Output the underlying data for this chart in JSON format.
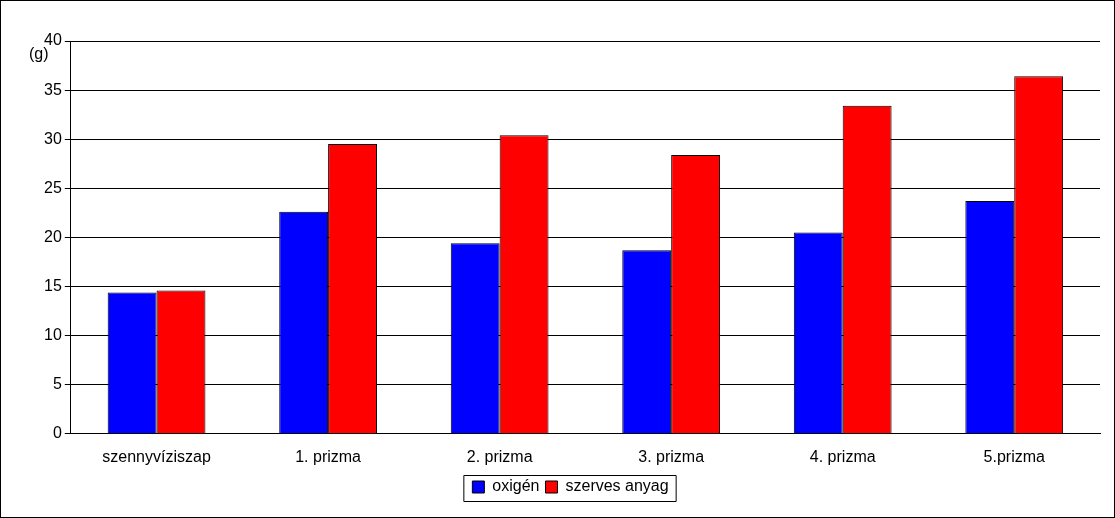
{
  "chart_data": {
    "type": "bar",
    "ylabel": "(g)",
    "categories": [
      "szennyvíziszap",
      "1. prizma",
      "2. prizma",
      "3. prizma",
      "4. prizma",
      "5.prizma"
    ],
    "series": [
      {
        "name": "oxigén",
        "color": "#0000ff",
        "values": [
          14.4,
          22.6,
          19.4,
          18.7,
          20.5,
          23.7
        ]
      },
      {
        "name": "szerves anyag",
        "color": "#ff0000",
        "values": [
          14.6,
          29.5,
          30.4,
          28.4,
          33.4,
          36.4
        ]
      }
    ],
    "ylim": [
      0,
      40
    ],
    "yticks": [
      0,
      5,
      10,
      15,
      20,
      25,
      30,
      35,
      40
    ],
    "grid": "y",
    "legend": "bottom"
  }
}
